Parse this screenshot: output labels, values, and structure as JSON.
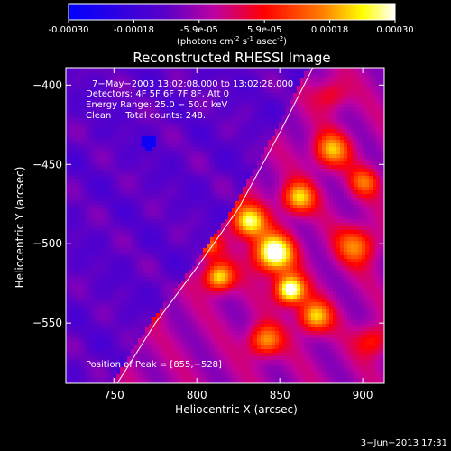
{
  "colorbar": {
    "tick_labels": [
      "-0.00030",
      "-0.00018",
      "-5.9e-05",
      "5.9e-05",
      "0.00018",
      "0.00030"
    ],
    "unit_base": "(photons cm",
    "unit_exp1": "-2",
    "unit_mid": " s",
    "unit_exp2": "-1",
    "unit_end": " asec",
    "unit_exp3": "-2",
    "unit_close": ")",
    "range": [
      -0.0003,
      0.0003
    ]
  },
  "chart_data": {
    "type": "heatmap",
    "title": "Reconstructed RHESSI Image",
    "xlabel": "Heliocentric X (arcsec)",
    "ylabel": "Heliocentric Y (arcsec)",
    "xlim": [
      721,
      913
    ],
    "ylim": [
      -588,
      -389
    ],
    "x_ticks": [
      750,
      800,
      850,
      900
    ],
    "y_ticks": [
      -400,
      -450,
      -500,
      -550
    ],
    "x_tick_labels": [
      "750",
      "800",
      "850",
      "900"
    ],
    "y_tick_labels": [
      "−400",
      "−450",
      "−500",
      "−550"
    ],
    "annotations": [
      "7−May−2003 13:02:08.000 to 13:02:28.000",
      "Detectors: 4F 5F 6F 7F 8F, Att 0",
      "Energy Range: 25.0 − 50.0 keV",
      "Clean     Total counts: 248."
    ],
    "peak_label": "Position of Peak = [855,−528]",
    "peak": [
      855,
      -528
    ],
    "limb_points": [
      [
        752,
        -588
      ],
      [
        775,
        -550
      ],
      [
        800,
        -515
      ],
      [
        825,
        -478
      ],
      [
        850,
        -430
      ],
      [
        870,
        -389
      ]
    ],
    "colormap_stops": [
      "#0000ff",
      "#5a00c8",
      "#c000a0",
      "#ff0000",
      "#ff8000",
      "#ffff00",
      "#ffffff"
    ],
    "value_range": [
      -0.0003,
      0.0003
    ]
  },
  "footer": {
    "date": "3−Jun−2013 17:31"
  }
}
